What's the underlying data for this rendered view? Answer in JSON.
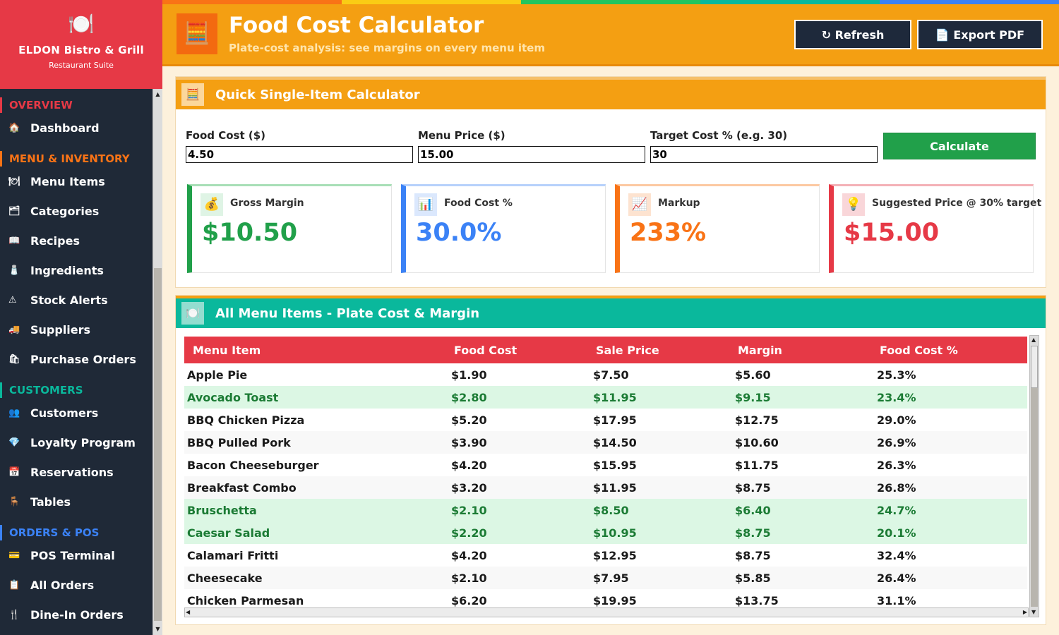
{
  "brand": {
    "logo": "🍽️",
    "name": "ELDON Bistro & Grill",
    "subtitle": "Restaurant Suite"
  },
  "sidebar": {
    "sections": [
      {
        "title": "OVERVIEW",
        "color": "#e63946",
        "items": [
          {
            "icon": "🏠",
            "label": "Dashboard"
          }
        ]
      },
      {
        "title": "MENU & INVENTORY",
        "color": "#f97316",
        "items": [
          {
            "icon": "🍽",
            "label": "Menu Items"
          },
          {
            "icon": "🗂",
            "label": "Categories"
          },
          {
            "icon": "📖",
            "label": "Recipes"
          },
          {
            "icon": "🧂",
            "label": "Ingredients"
          },
          {
            "icon": "⚠",
            "label": "Stock Alerts"
          },
          {
            "icon": "🚚",
            "label": "Suppliers"
          },
          {
            "icon": "🛍",
            "label": "Purchase Orders"
          }
        ]
      },
      {
        "title": "CUSTOMERS",
        "color": "#0ab89c",
        "items": [
          {
            "icon": "👥",
            "label": "Customers"
          },
          {
            "icon": "💎",
            "label": "Loyalty Program"
          },
          {
            "icon": "📅",
            "label": "Reservations"
          },
          {
            "icon": "🪑",
            "label": "Tables"
          }
        ]
      },
      {
        "title": "ORDERS & POS",
        "color": "#3b82f6",
        "items": [
          {
            "icon": "💳",
            "label": "POS Terminal"
          },
          {
            "icon": "📋",
            "label": "All Orders"
          },
          {
            "icon": "🍴",
            "label": "Dine-In Orders"
          }
        ]
      }
    ]
  },
  "header": {
    "icon": "🧮",
    "title": "Food Cost Calculator",
    "subtitle": "Plate-cost analysis: see margins on every menu item",
    "refresh_label": "↻ Refresh",
    "export_label": "📄 Export PDF",
    "rainbow": [
      "#f97316",
      "#facc15",
      "#22c55e",
      "#0ab89c",
      "#3b82f6"
    ]
  },
  "calculator": {
    "icon": "🧮",
    "title": "Quick Single-Item Calculator",
    "food_cost": {
      "label": "Food Cost ($)",
      "value": "4.50"
    },
    "menu_price": {
      "label": "Menu Price ($)",
      "value": "15.00"
    },
    "target_cost": {
      "label": "Target Cost % (e.g. 30)",
      "value": "30"
    },
    "calculate_label": "Calculate",
    "cards": [
      {
        "icon": "💰",
        "label": "Gross Margin",
        "value": "$10.50",
        "color": "#21a04a",
        "top": "#a8dfb7",
        "bg": "#dff4e5"
      },
      {
        "icon": "📊",
        "label": "Food Cost %",
        "value": "30.0%",
        "color": "#3b82f6",
        "top": "#b7d1fb",
        "bg": "#dbe8fd"
      },
      {
        "icon": "📈",
        "label": "Markup",
        "value": "233%",
        "color": "#f97316",
        "top": "#fcc9a2",
        "bg": "#fde3d0"
      },
      {
        "icon": "💡",
        "label": "Suggested Price @ 30% target",
        "value": "$15.00",
        "color": "#e63946",
        "top": "#f4b1b7",
        "bg": "#f9d6d9"
      }
    ]
  },
  "table": {
    "icon": "🍽️",
    "title": "All Menu Items - Plate Cost & Margin",
    "columns": [
      "Menu Item",
      "Food Cost",
      "Sale Price",
      "Margin",
      "Food Cost %"
    ],
    "rows": [
      {
        "cells": [
          "Apple Pie",
          "$1.90",
          "$7.50",
          "$5.60",
          "25.3%"
        ],
        "good": false
      },
      {
        "cells": [
          "Avocado Toast",
          "$2.80",
          "$11.95",
          "$9.15",
          "23.4%"
        ],
        "good": true
      },
      {
        "cells": [
          "BBQ Chicken Pizza",
          "$5.20",
          "$17.95",
          "$12.75",
          "29.0%"
        ],
        "good": false
      },
      {
        "cells": [
          "BBQ Pulled Pork",
          "$3.90",
          "$14.50",
          "$10.60",
          "26.9%"
        ],
        "good": false
      },
      {
        "cells": [
          "Bacon Cheeseburger",
          "$4.20",
          "$15.95",
          "$11.75",
          "26.3%"
        ],
        "good": false
      },
      {
        "cells": [
          "Breakfast Combo",
          "$3.20",
          "$11.95",
          "$8.75",
          "26.8%"
        ],
        "good": false
      },
      {
        "cells": [
          "Bruschetta",
          "$2.10",
          "$8.50",
          "$6.40",
          "24.7%"
        ],
        "good": true
      },
      {
        "cells": [
          "Caesar Salad",
          "$2.20",
          "$10.95",
          "$8.75",
          "20.1%"
        ],
        "good": true
      },
      {
        "cells": [
          "Calamari Fritti",
          "$4.20",
          "$12.95",
          "$8.75",
          "32.4%"
        ],
        "good": false
      },
      {
        "cells": [
          "Cheesecake",
          "$2.10",
          "$7.95",
          "$5.85",
          "26.4%"
        ],
        "good": false
      },
      {
        "cells": [
          "Chicken Parmesan",
          "$6.20",
          "$19.95",
          "$13.75",
          "31.1%"
        ],
        "good": false
      }
    ]
  }
}
